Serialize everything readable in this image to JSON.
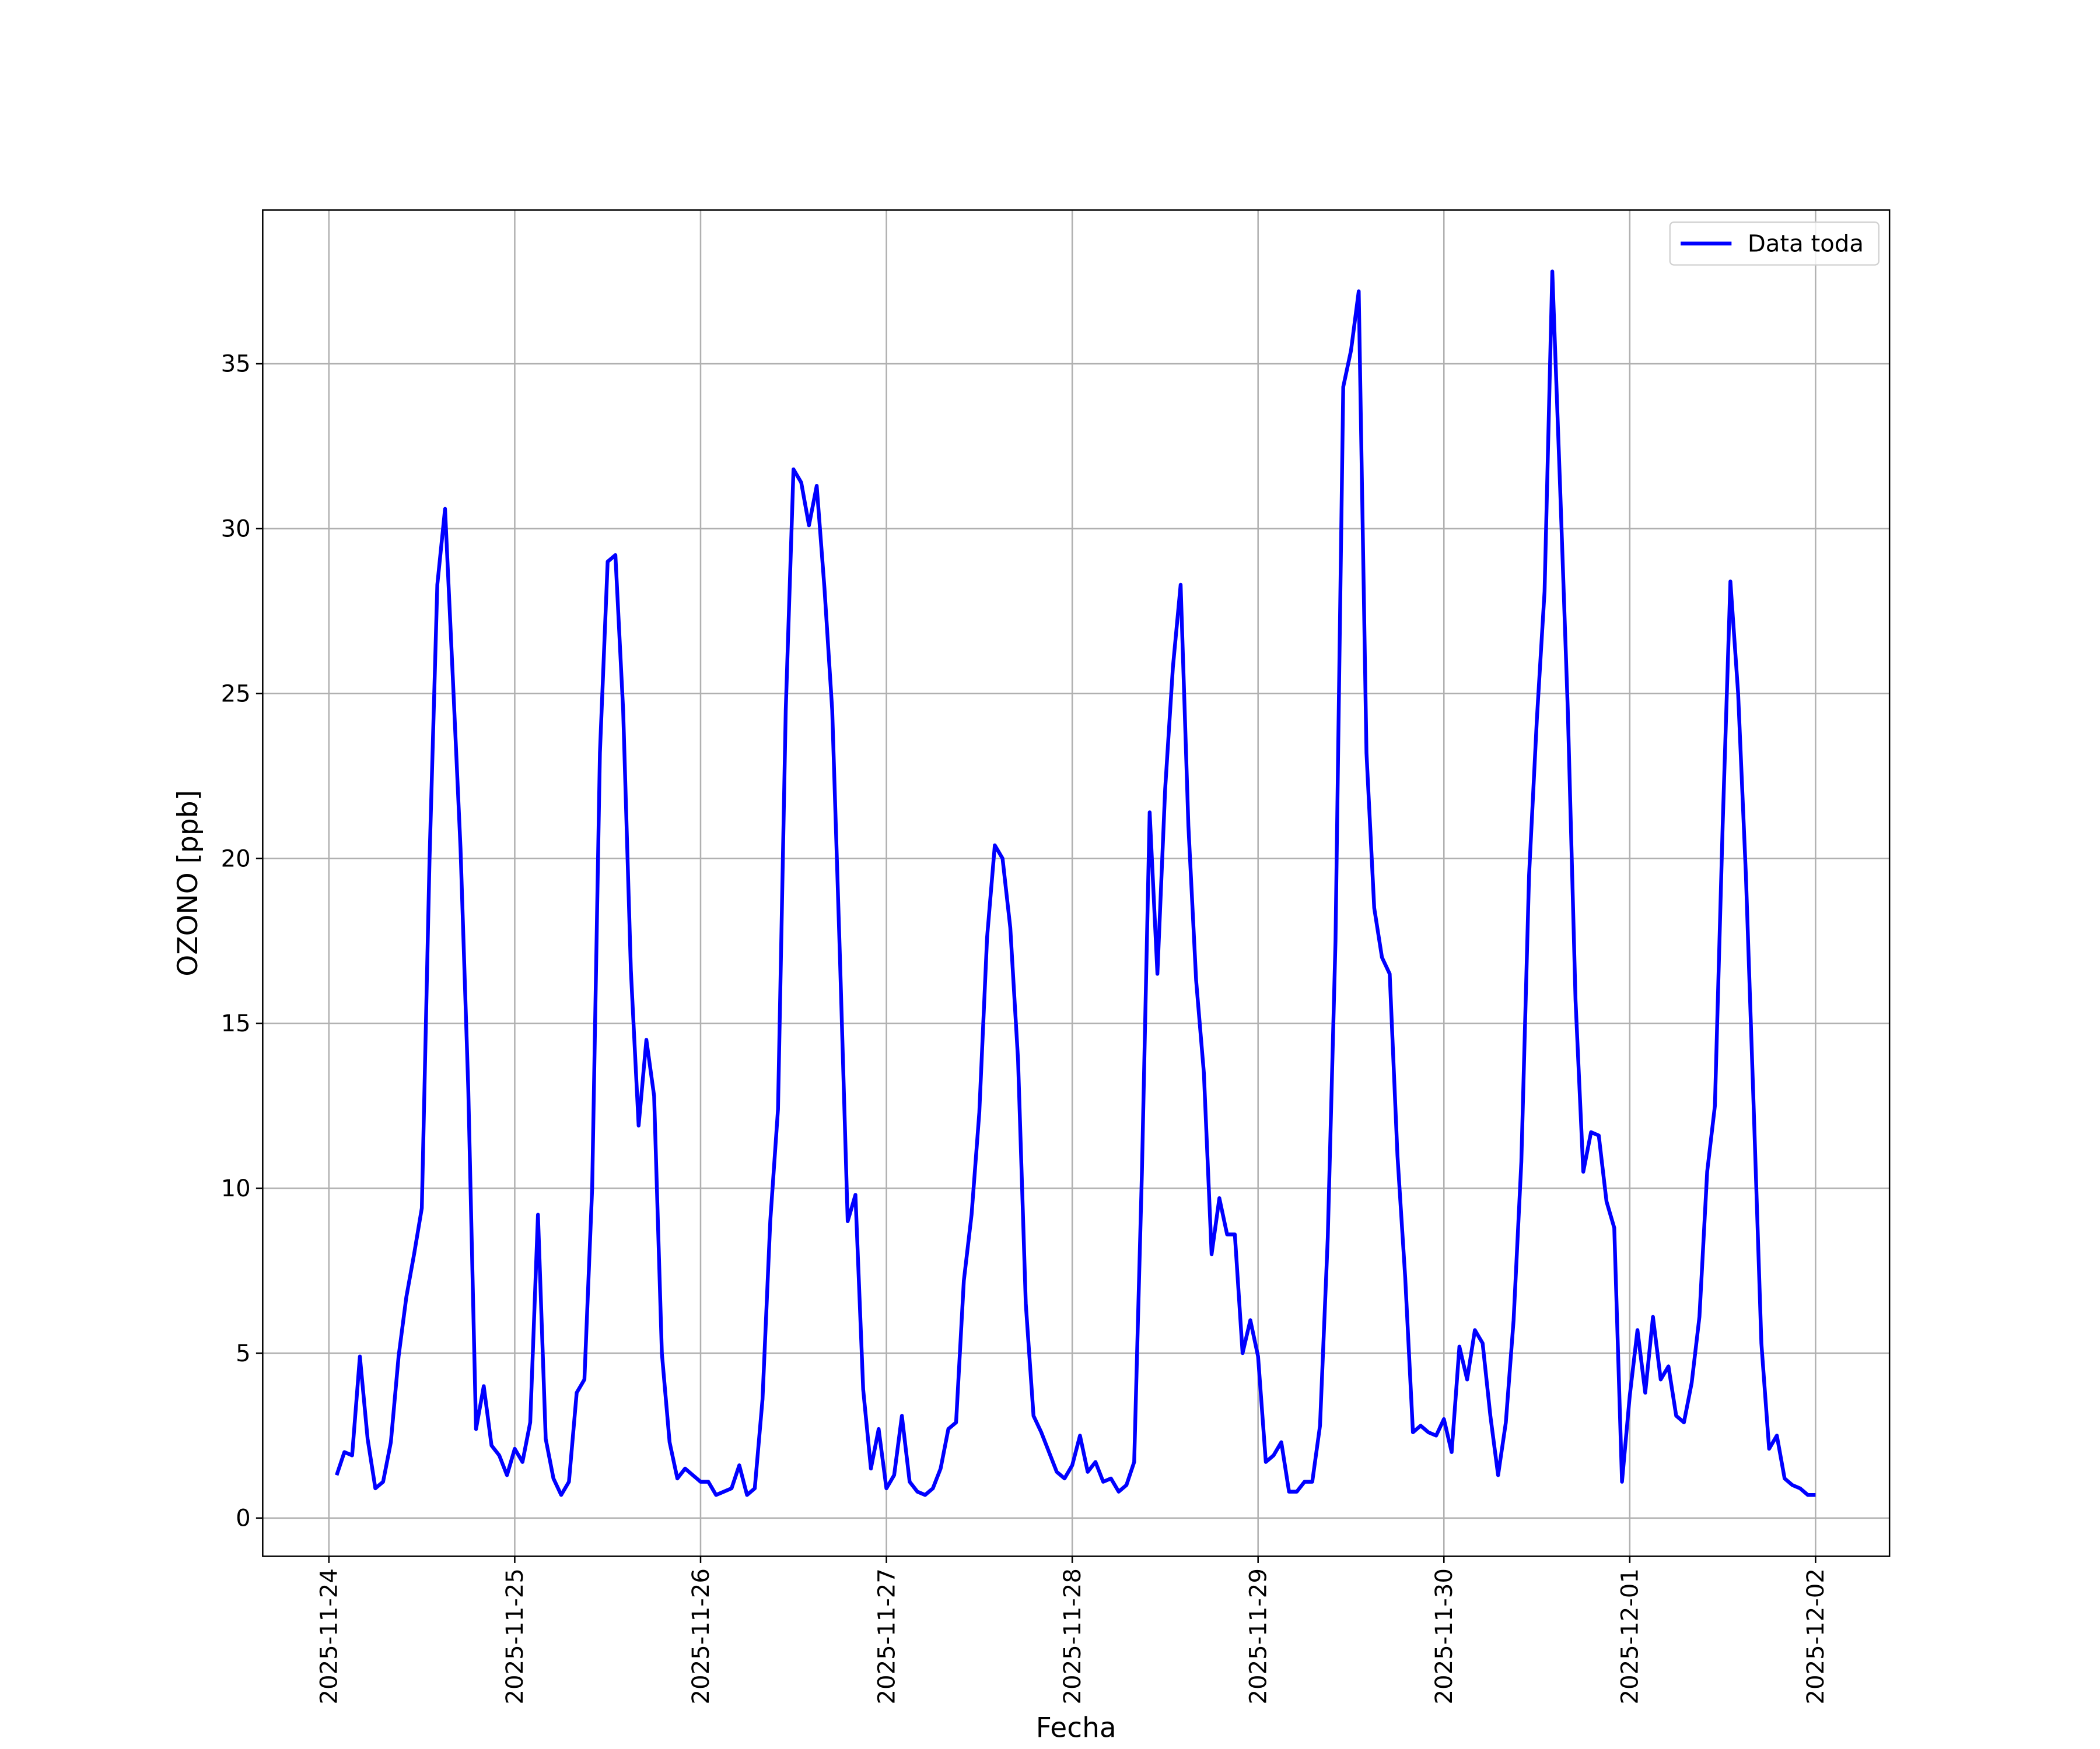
{
  "chart_data": {
    "type": "line",
    "xlabel": "Fecha",
    "ylabel": "OZONO [ppb]",
    "x": [
      "2025-11-24 01:00",
      "2025-11-24 02:00",
      "2025-11-24 03:00",
      "2025-11-24 04:00",
      "2025-11-24 05:00",
      "2025-11-24 06:00",
      "2025-11-24 07:00",
      "2025-11-24 08:00",
      "2025-11-24 09:00",
      "2025-11-24 10:00",
      "2025-11-24 11:00",
      "2025-11-24 12:00",
      "2025-11-24 13:00",
      "2025-11-24 14:00",
      "2025-11-24 15:00",
      "2025-11-24 16:00",
      "2025-11-24 17:00",
      "2025-11-24 18:00",
      "2025-11-24 19:00",
      "2025-11-24 20:00",
      "2025-11-24 21:00",
      "2025-11-24 22:00",
      "2025-11-24 23:00",
      "2025-11-25 00:00",
      "2025-11-25 01:00",
      "2025-11-25 02:00",
      "2025-11-25 03:00",
      "2025-11-25 04:00",
      "2025-11-25 05:00",
      "2025-11-25 06:00",
      "2025-11-25 07:00",
      "2025-11-25 08:00",
      "2025-11-25 09:00",
      "2025-11-25 10:00",
      "2025-11-25 11:00",
      "2025-11-25 12:00",
      "2025-11-25 13:00",
      "2025-11-25 14:00",
      "2025-11-25 15:00",
      "2025-11-25 16:00",
      "2025-11-25 17:00",
      "2025-11-25 18:00",
      "2025-11-25 19:00",
      "2025-11-25 20:00",
      "2025-11-25 21:00",
      "2025-11-25 22:00",
      "2025-11-25 23:00",
      "2025-11-26 00:00",
      "2025-11-26 01:00",
      "2025-11-26 02:00",
      "2025-11-26 03:00",
      "2025-11-26 04:00",
      "2025-11-26 05:00",
      "2025-11-26 06:00",
      "2025-11-26 07:00",
      "2025-11-26 08:00",
      "2025-11-26 09:00",
      "2025-11-26 10:00",
      "2025-11-26 11:00",
      "2025-11-26 12:00",
      "2025-11-26 13:00",
      "2025-11-26 14:00",
      "2025-11-26 15:00",
      "2025-11-26 16:00",
      "2025-11-26 17:00",
      "2025-11-26 18:00",
      "2025-11-26 19:00",
      "2025-11-26 20:00",
      "2025-11-26 21:00",
      "2025-11-26 22:00",
      "2025-11-26 23:00",
      "2025-11-27 00:00",
      "2025-11-27 01:00",
      "2025-11-27 02:00",
      "2025-11-27 03:00",
      "2025-11-27 04:00",
      "2025-11-27 05:00",
      "2025-11-27 06:00",
      "2025-11-27 07:00",
      "2025-11-27 08:00",
      "2025-11-27 09:00",
      "2025-11-27 10:00",
      "2025-11-27 11:00",
      "2025-11-27 12:00",
      "2025-11-27 13:00",
      "2025-11-27 14:00",
      "2025-11-27 15:00",
      "2025-11-27 16:00",
      "2025-11-27 17:00",
      "2025-11-27 18:00",
      "2025-11-27 19:00",
      "2025-11-27 20:00",
      "2025-11-27 21:00",
      "2025-11-27 22:00",
      "2025-11-27 23:00",
      "2025-11-28 00:00",
      "2025-11-28 01:00",
      "2025-11-28 02:00",
      "2025-11-28 03:00",
      "2025-11-28 04:00",
      "2025-11-28 05:00",
      "2025-11-28 06:00",
      "2025-11-28 07:00",
      "2025-11-28 08:00",
      "2025-11-28 09:00",
      "2025-11-28 10:00",
      "2025-11-28 11:00",
      "2025-11-28 12:00",
      "2025-11-28 13:00",
      "2025-11-28 14:00",
      "2025-11-28 15:00",
      "2025-11-28 16:00",
      "2025-11-28 17:00",
      "2025-11-28 18:00",
      "2025-11-28 19:00",
      "2025-11-28 20:00",
      "2025-11-28 21:00",
      "2025-11-28 22:00",
      "2025-11-28 23:00",
      "2025-11-29 00:00",
      "2025-11-29 01:00",
      "2025-11-29 02:00",
      "2025-11-29 03:00",
      "2025-11-29 04:00",
      "2025-11-29 05:00",
      "2025-11-29 06:00",
      "2025-11-29 07:00",
      "2025-11-29 08:00",
      "2025-11-29 09:00",
      "2025-11-29 10:00",
      "2025-11-29 11:00",
      "2025-11-29 12:00",
      "2025-11-29 13:00",
      "2025-11-29 14:00",
      "2025-11-29 15:00",
      "2025-11-29 16:00",
      "2025-11-29 17:00",
      "2025-11-29 18:00",
      "2025-11-29 19:00",
      "2025-11-29 20:00",
      "2025-11-29 21:00",
      "2025-11-29 22:00",
      "2025-11-29 23:00",
      "2025-11-30 00:00",
      "2025-11-30 01:00",
      "2025-11-30 02:00",
      "2025-11-30 03:00",
      "2025-11-30 04:00",
      "2025-11-30 05:00",
      "2025-11-30 06:00",
      "2025-11-30 07:00",
      "2025-11-30 08:00",
      "2025-11-30 09:00",
      "2025-11-30 10:00",
      "2025-11-30 11:00",
      "2025-11-30 12:00",
      "2025-11-30 13:00",
      "2025-11-30 14:00",
      "2025-11-30 15:00",
      "2025-11-30 16:00",
      "2025-11-30 17:00",
      "2025-11-30 18:00",
      "2025-11-30 19:00",
      "2025-11-30 20:00",
      "2025-11-30 21:00",
      "2025-11-30 22:00",
      "2025-11-30 23:00",
      "2025-12-01 00:00",
      "2025-12-01 01:00",
      "2025-12-01 02:00",
      "2025-12-01 03:00",
      "2025-12-01 04:00",
      "2025-12-01 05:00",
      "2025-12-01 06:00",
      "2025-12-01 07:00",
      "2025-12-01 08:00",
      "2025-12-01 09:00",
      "2025-12-01 10:00",
      "2025-12-01 11:00",
      "2025-12-01 12:00",
      "2025-12-01 13:00",
      "2025-12-01 14:00",
      "2025-12-01 15:00",
      "2025-12-01 16:00",
      "2025-12-01 17:00",
      "2025-12-01 18:00",
      "2025-12-01 19:00",
      "2025-12-01 20:00",
      "2025-12-01 21:00",
      "2025-12-01 22:00",
      "2025-12-01 23:00",
      "2025-12-02 00:00"
    ],
    "series": [
      {
        "name": "Data toda",
        "color": "#0000ff",
        "values": [
          1.3,
          2.0,
          1.9,
          4.9,
          2.4,
          0.9,
          1.1,
          2.3,
          4.9,
          6.7,
          8.0,
          9.4,
          20,
          28.3,
          30.6,
          25.5,
          20.3,
          13,
          2.7,
          4.0,
          2.2,
          1.9,
          1.3,
          2.1,
          1.7,
          2.9,
          9.2,
          2.4,
          1.2,
          0.7,
          1.1,
          3.8,
          4.2,
          10,
          23.2,
          29.0,
          29.2,
          24.5,
          16.6,
          11.9,
          14.5,
          12.8,
          5.0,
          2.3,
          1.2,
          1.5,
          1.3,
          1.1,
          1.1,
          0.7,
          0.8,
          0.9,
          1.6,
          0.7,
          0.9,
          3.6,
          9.0,
          12.4,
          24.5,
          31.8,
          31.4,
          30.1,
          31.3,
          28.2,
          24.5,
          17,
          9.0,
          9.8,
          3.9,
          1.5,
          2.7,
          0.9,
          1.3,
          3.1,
          1.1,
          0.8,
          0.7,
          0.9,
          1.5,
          2.7,
          2.9,
          7.2,
          9.2,
          12.3,
          17.6,
          20.4,
          20.0,
          17.9,
          13.9,
          6.5,
          3.1,
          2.6,
          2.0,
          1.4,
          1.2,
          1.6,
          2.5,
          1.4,
          1.7,
          1.1,
          1.2,
          0.8,
          1.0,
          1.7,
          10.5,
          21.4,
          16.5,
          22.1,
          25.8,
          28.3,
          21,
          16.3,
          13.5,
          8.0,
          9.7,
          8.6,
          8.6,
          5.0,
          6.0,
          4.9,
          1.7,
          1.9,
          2.3,
          0.8,
          0.8,
          1.1,
          1.1,
          2.8,
          8.5,
          17.5,
          34.3,
          35.4,
          37.2,
          23.2,
          18.5,
          17.0,
          16.5,
          11,
          7.3,
          2.6,
          2.8,
          2.6,
          2.5,
          3.0,
          2.0,
          5.2,
          4.2,
          5.7,
          5.3,
          3.1,
          1.3,
          2.9,
          6.0,
          10.8,
          19.5,
          24.2,
          28.1,
          37.8,
          31.3,
          24.5,
          15.7,
          10.5,
          11.7,
          11.6,
          9.6,
          8.8,
          1.1,
          3.7,
          5.7,
          3.8,
          6.1,
          4.2,
          4.6,
          3.1,
          2.9,
          4.1,
          6.1,
          10.5,
          12.5,
          21,
          28.4,
          25,
          19.5,
          12.5,
          5.3,
          2.1,
          2.5,
          1.2,
          1.0,
          0.9,
          0.7,
          0.7
        ]
      }
    ],
    "xlim": [
      "2025-11-23 15:27",
      "2025-12-02 09:33"
    ],
    "xticks": [
      "2025-11-24",
      "2025-11-25",
      "2025-11-26",
      "2025-11-27",
      "2025-11-28",
      "2025-11-29",
      "2025-11-30",
      "2025-12-01",
      "2025-12-02"
    ],
    "ylim": [
      -1.16,
      39.66
    ],
    "yticks": [
      0,
      5,
      10,
      15,
      20,
      25,
      30,
      35
    ],
    "grid": true,
    "legend": "upper right"
  }
}
